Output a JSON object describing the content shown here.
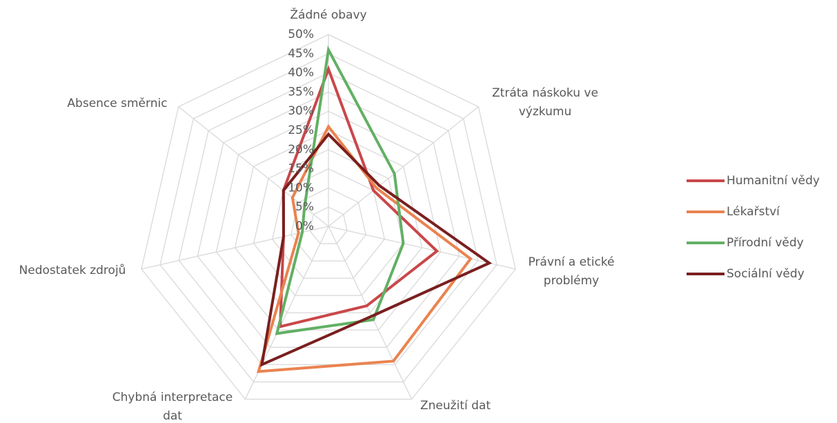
{
  "chart_data": {
    "type": "radar",
    "categories": [
      "Žádné obavy",
      "Ztráta náskoku ve výzkumu",
      "Právní a etické problémy",
      "Zneužití dat",
      "Chybná interpretace dat",
      "Nedostatek zdrojů",
      "Absence směrnic"
    ],
    "series": [
      {
        "name": "Humanitní vědy",
        "color": "#c9474a",
        "values": [
          41,
          15,
          29,
          23,
          29,
          12,
          15
        ]
      },
      {
        "name": "Lékařství",
        "color": "#ea8350",
        "values": [
          26,
          16,
          38,
          39,
          42,
          8,
          12
        ]
      },
      {
        "name": "Přírodní vědy",
        "color": "#62b064",
        "values": [
          46,
          22,
          20,
          27,
          31,
          7,
          8
        ]
      },
      {
        "name": "Sociální vědy",
        "color": "#7a1f1f",
        "values": [
          24,
          17,
          43,
          26,
          40,
          12,
          15
        ]
      }
    ],
    "ylim": [
      0,
      50
    ],
    "yticks": [
      {
        "value": 0,
        "label": "0%"
      },
      {
        "value": 5,
        "label": "5%"
      },
      {
        "value": 10,
        "label": "10%"
      },
      {
        "value": 15,
        "label": "15%"
      },
      {
        "value": 20,
        "label": "20%"
      },
      {
        "value": 25,
        "label": "25%"
      },
      {
        "value": 30,
        "label": "30%"
      },
      {
        "value": 35,
        "label": "35%"
      },
      {
        "value": 40,
        "label": "40%"
      },
      {
        "value": 45,
        "label": "45%"
      },
      {
        "value": 50,
        "label": "50%"
      }
    ],
    "grid": true,
    "legend": "right"
  }
}
